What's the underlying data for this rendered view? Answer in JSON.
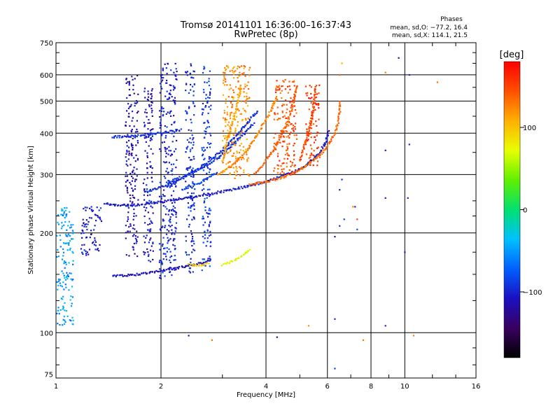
{
  "chart_data": {
    "type": "scatter",
    "title": "Tromsø 20141101 16:36:00–16:37:43",
    "subtitle": "RwPretec (8p)",
    "xlabel": "Frequency [MHz]",
    "ylabel": "Stationary phase Virtual Height [km]",
    "xscale": "log",
    "yscale": "log",
    "xlim": [
      1,
      16
    ],
    "ylim": [
      73,
      750
    ],
    "xticks": [
      1,
      2,
      4,
      6,
      8,
      10,
      16
    ],
    "xtick_labels": [
      "1",
      "2",
      "4",
      "6",
      "8",
      "10",
      "16"
    ],
    "yticks": [
      75,
      100,
      200,
      300,
      400,
      500,
      600,
      750
    ],
    "ytick_labels": [
      "75",
      "100",
      "200",
      "300",
      "400",
      "500",
      "600",
      "750"
    ],
    "grid": true,
    "stats": {
      "header": "Phases",
      "line_o": "mean, sd,O: −77.2, 16.4",
      "line_x": "mean, sd,X: 114.1, 21.5"
    },
    "colorbar": {
      "label": "[deg]",
      "range": [
        -180,
        180
      ],
      "ticks": [
        100,
        0,
        -100
      ],
      "tick_labels": [
        "100",
        "0",
        "−100"
      ]
    },
    "traces": [
      {
        "name": "F-trace O",
        "phase": -105,
        "points": [
          [
            1.38,
            245
          ],
          [
            1.5,
            242
          ],
          [
            1.7,
            243
          ],
          [
            2.0,
            248
          ],
          [
            2.4,
            256
          ],
          [
            2.8,
            263
          ],
          [
            3.2,
            270
          ],
          [
            3.6,
            278
          ],
          [
            4.0,
            286
          ],
          [
            4.5,
            298
          ],
          [
            5.0,
            312
          ],
          [
            5.4,
            330
          ],
          [
            5.7,
            350
          ],
          [
            5.9,
            372
          ],
          [
            6.0,
            395
          ],
          [
            6.05,
            410
          ]
        ]
      },
      {
        "name": "F-trace O echo",
        "phase": -95,
        "points": [
          [
            1.45,
            390
          ],
          [
            1.7,
            393
          ],
          [
            2.0,
            400
          ],
          [
            2.3,
            410
          ]
        ]
      },
      {
        "name": "F-trace X",
        "phase": 135,
        "points": [
          [
            3.6,
            280
          ],
          [
            4.0,
            285
          ],
          [
            4.5,
            295
          ],
          [
            5.0,
            310
          ],
          [
            5.4,
            328
          ],
          [
            5.8,
            350
          ],
          [
            6.1,
            375
          ],
          [
            6.3,
            400
          ],
          [
            6.45,
            430
          ],
          [
            6.5,
            470
          ],
          [
            6.55,
            500
          ]
        ]
      },
      {
        "name": "E-trace O",
        "phase": -110,
        "points": [
          [
            1.45,
            148
          ],
          [
            1.7,
            150
          ],
          [
            2.0,
            154
          ],
          [
            2.3,
            158
          ],
          [
            2.6,
            162
          ],
          [
            2.8,
            166
          ]
        ]
      },
      {
        "name": "E-trace X",
        "phase": 95,
        "points": [
          [
            2.4,
            160
          ],
          [
            2.6,
            160
          ],
          [
            2.75,
            162
          ]
        ]
      },
      {
        "name": "Multi-hop O 1",
        "phase": -95,
        "points": [
          [
            1.8,
            265
          ],
          [
            2.2,
            285
          ],
          [
            2.6,
            315
          ],
          [
            3.0,
            355
          ],
          [
            3.4,
            410
          ],
          [
            3.8,
            470
          ]
        ]
      },
      {
        "name": "Multi-hop O 2",
        "phase": -90,
        "points": [
          [
            2.1,
            285
          ],
          [
            2.5,
            305
          ],
          [
            2.9,
            335
          ],
          [
            3.3,
            380
          ],
          [
            3.7,
            430
          ]
        ]
      },
      {
        "name": "Multi-hop O 3",
        "phase": -85,
        "points": [
          [
            2.3,
            270
          ],
          [
            2.6,
            285
          ],
          [
            2.9,
            305
          ]
        ]
      },
      {
        "name": "Multi-hop X 1",
        "phase": 125,
        "points": [
          [
            2.9,
            300
          ],
          [
            3.2,
            320
          ],
          [
            3.5,
            350
          ],
          [
            3.8,
            400
          ],
          [
            4.1,
            460
          ],
          [
            4.3,
            520
          ]
        ]
      },
      {
        "name": "Multi-hop X 2",
        "phase": 140,
        "points": [
          [
            3.7,
            300
          ],
          [
            4.0,
            330
          ],
          [
            4.3,
            370
          ],
          [
            4.6,
            430
          ],
          [
            4.8,
            500
          ],
          [
            4.9,
            560
          ]
        ]
      },
      {
        "name": "Multi-hop X 3",
        "phase": 110,
        "points": [
          [
            3.0,
            330
          ],
          [
            3.1,
            380
          ],
          [
            3.2,
            430
          ],
          [
            3.3,
            480
          ],
          [
            3.4,
            560
          ]
        ]
      },
      {
        "name": "Multi-hop X 4",
        "phase": 150,
        "points": [
          [
            5.0,
            330
          ],
          [
            5.2,
            380
          ],
          [
            5.4,
            440
          ],
          [
            5.5,
            500
          ],
          [
            5.55,
            560
          ]
        ]
      },
      {
        "name": "E-layer X",
        "phase": 75,
        "points": [
          [
            3.0,
            160
          ],
          [
            3.2,
            164
          ],
          [
            3.4,
            170
          ],
          [
            3.6,
            178
          ]
        ]
      }
    ],
    "bands": [
      {
        "name": "column 2.1 MHz",
        "phase": -100,
        "x": [
          1.98,
          2.22
        ],
        "y": [
          145,
          650
        ]
      },
      {
        "name": "column 2.45 MHz",
        "phase": -95,
        "x": [
          2.35,
          2.5
        ],
        "y": [
          150,
          650
        ]
      },
      {
        "name": "column 2.7 MHz",
        "phase": -90,
        "x": [
          2.62,
          2.78
        ],
        "y": [
          150,
          640
        ]
      },
      {
        "name": "column 1.85 MHz",
        "phase": -110,
        "x": [
          1.78,
          1.9
        ],
        "y": [
          160,
          560
        ]
      },
      {
        "name": "column 1.65 MHz",
        "phase": -115,
        "x": [
          1.58,
          1.72
        ],
        "y": [
          170,
          600
        ]
      },
      {
        "name": "X cluster 3.3 MHz",
        "phase": 120,
        "x": [
          3.0,
          3.6
        ],
        "y": [
          290,
          640
        ]
      },
      {
        "name": "X cluster 4.6 MHz",
        "phase": 145,
        "x": [
          4.2,
          4.9
        ],
        "y": [
          300,
          580
        ]
      },
      {
        "name": "X cluster 5.4 MHz",
        "phase": 155,
        "x": [
          5.2,
          5.7
        ],
        "y": [
          320,
          560
        ]
      },
      {
        "name": "O cluster 1.25 MHz",
        "phase": -105,
        "x": [
          1.18,
          1.35
        ],
        "y": [
          170,
          240
        ]
      },
      {
        "name": "low cluster 1.05 MHz",
        "phase": -50,
        "x": [
          1.0,
          1.12
        ],
        "y": [
          105,
          240
        ]
      }
    ],
    "scatter": [
      [
        9.6,
        675,
        -115
      ],
      [
        8.8,
        610,
        130
      ],
      [
        8.8,
        355,
        -100
      ],
      [
        8.8,
        255,
        -100
      ],
      [
        8.8,
        105,
        -100
      ],
      [
        10.3,
        370,
        -100
      ],
      [
        10.2,
        255,
        -100
      ],
      [
        10.3,
        600,
        -100
      ],
      [
        10.0,
        175,
        -100
      ],
      [
        10.6,
        98,
        130
      ],
      [
        12.4,
        570,
        130
      ],
      [
        6.3,
        195,
        -110
      ],
      [
        6.3,
        110,
        -100
      ],
      [
        6.3,
        78,
        -90
      ],
      [
        6.5,
        210,
        -95
      ],
      [
        6.7,
        220,
        -90
      ],
      [
        7.1,
        240,
        130
      ],
      [
        7.2,
        240,
        -100
      ],
      [
        7.3,
        220,
        150
      ],
      [
        7.3,
        205,
        -80
      ],
      [
        6.6,
        290,
        -90
      ],
      [
        6.5,
        270,
        -100
      ],
      [
        5.3,
        105,
        120
      ],
      [
        4.3,
        97,
        -115
      ],
      [
        2.8,
        95,
        130
      ],
      [
        2.4,
        98,
        -110
      ],
      [
        7.6,
        95,
        130
      ],
      [
        6.6,
        650,
        110
      ],
      [
        6.5,
        600,
        140
      ]
    ]
  }
}
